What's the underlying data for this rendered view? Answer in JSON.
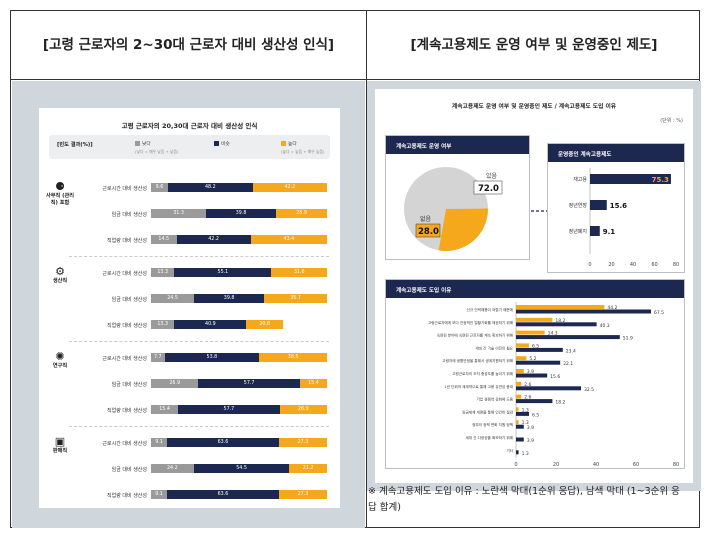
{
  "left": {
    "header": "[고령 근로자의 2~30대 근로자 대비 생산성 인식]",
    "title": "고령 근로자의 20,30대 근로자 대비 생산성 인식",
    "legend": {
      "label": "[빈도 결과(%)]",
      "items": [
        "낮다",
        "비슷",
        "높다"
      ],
      "notes": [
        "(낮다 = 매우 낮음 + 낮음)",
        "(높다 = 높음 + 매우 높음)"
      ],
      "colors": [
        "#9a9a9a",
        "#1c2850",
        "#f6a81c"
      ]
    },
    "groups": [
      {
        "name": "사무직 (관리직) 포함",
        "icon": "office-worker-icon",
        "symbol": "⚈",
        "rows": [
          {
            "label": "근로시간 대비 생산성",
            "values": [
              9.6,
              48.2,
              42.2
            ]
          },
          {
            "label": "임금 대비 생산성",
            "values": [
              31.3,
              39.8,
              28.9
            ]
          },
          {
            "label": "직업량 대비 생산성",
            "values": [
              14.5,
              42.2,
              43.4
            ]
          }
        ]
      },
      {
        "name": "생산직",
        "icon": "gears-icon",
        "symbol": "⚙",
        "rows": [
          {
            "label": "근로시간 대비 생산성",
            "values": [
              13.3,
              55.1,
              31.6
            ]
          },
          {
            "label": "임금 대비 생산성",
            "values": [
              24.5,
              39.8,
              35.7
            ]
          },
          {
            "label": "직업량 대비 생산성",
            "values": [
              13.3,
              40.9,
              20.8
            ]
          }
        ]
      },
      {
        "name": "연구직",
        "icon": "lightbulb-icon",
        "symbol": "✺",
        "rows": [
          {
            "label": "근로시간 대비 생산성",
            "values": [
              7.7,
              53.8,
              38.5
            ]
          },
          {
            "label": "임금 대비 생산성",
            "values": [
              26.9,
              57.7,
              15.4
            ]
          },
          {
            "label": "직업량 대비 생산성",
            "values": [
              15.4,
              57.7,
              26.9
            ]
          }
        ]
      },
      {
        "name": "판매직",
        "icon": "register-icon",
        "symbol": "▣",
        "rows": [
          {
            "label": "근로시간 대비 생산성",
            "values": [
              9.1,
              63.6,
              27.3
            ]
          },
          {
            "label": "임금 대비 생산성",
            "values": [
              24.2,
              54.5,
              21.2
            ]
          },
          {
            "label": "직업량 대비 생산성",
            "values": [
              9.1,
              63.6,
              27.3
            ]
          }
        ]
      }
    ]
  },
  "right": {
    "header": "[계속고용제도 운영 여부 및 운영중인 제도]",
    "title": "계속고용제도 운영 여부 및 운영중인 제도 / 계속고용제도 도입 이유",
    "unit": "(단위 : %)",
    "pie_title": "계속고용제도 운영 여부",
    "pie": [
      {
        "label": "있음",
        "value": "72.0"
      },
      {
        "label": "없음",
        "value": "28.0"
      }
    ],
    "bar_title": "운영중인 계속고용제도",
    "bars": [
      {
        "label": "재고용",
        "value": 75.3
      },
      {
        "label": "정년연장",
        "value": 15.6
      },
      {
        "label": "정년폐지",
        "value": 9.1
      }
    ],
    "bar_ticks": [
      "0",
      "20",
      "40",
      "60",
      "80"
    ],
    "reason_title": "계속고용제도 도입 이유",
    "reasons": [
      {
        "label": "신규 인력채용이 어렵기 때문에",
        "first": 44.2,
        "total": 67.5
      },
      {
        "label": "고령근로자에게 보다 안정적인 일할기회를 제공하기 위해",
        "first": 18.2,
        "total": 40.3
      },
      {
        "label": "숙련된 분야에 숙련된 근로자를 계속 확보하기 위해",
        "first": 14.3,
        "total": 51.9
      },
      {
        "label": "세대 간 기술 이전의 필요",
        "first": 6.5,
        "total": 23.4
      },
      {
        "label": "고령자에 생활안정을 통해서 생계지원하기 위해",
        "first": 5.2,
        "total": 22.1
      },
      {
        "label": "고령근로자의 조직 충성도를 높이기 위해",
        "first": 3.9,
        "total": 15.6
      },
      {
        "label": "1년 단위의 재계약으로 통해 고용 유연성 증대",
        "first": 2.6,
        "total": 32.5
      },
      {
        "label": "기업 경쟁력 강화에 도움",
        "first": 2.6,
        "total": 18.2
      },
      {
        "label": "임금체계 개편을 통해 인건비 절감",
        "first": 1.3,
        "total": 6.5
      },
      {
        "label": "정부의 정책 변화 지원 정책",
        "first": 1.3,
        "total": 3.9
      },
      {
        "label": "세대 간 다양성을 확보하기 위해",
        "first": 0,
        "total": 3.9
      },
      {
        "label": "기타",
        "first": 0,
        "total": 1.3
      }
    ],
    "reason_ticks": [
      "0",
      "20",
      "40",
      "60",
      "80"
    ],
    "note": "※ 계속고용제도 도입 이유 : 노란색 막대(1순위 응답), 남색 막대 (1~3순위 응답 합계)"
  }
}
